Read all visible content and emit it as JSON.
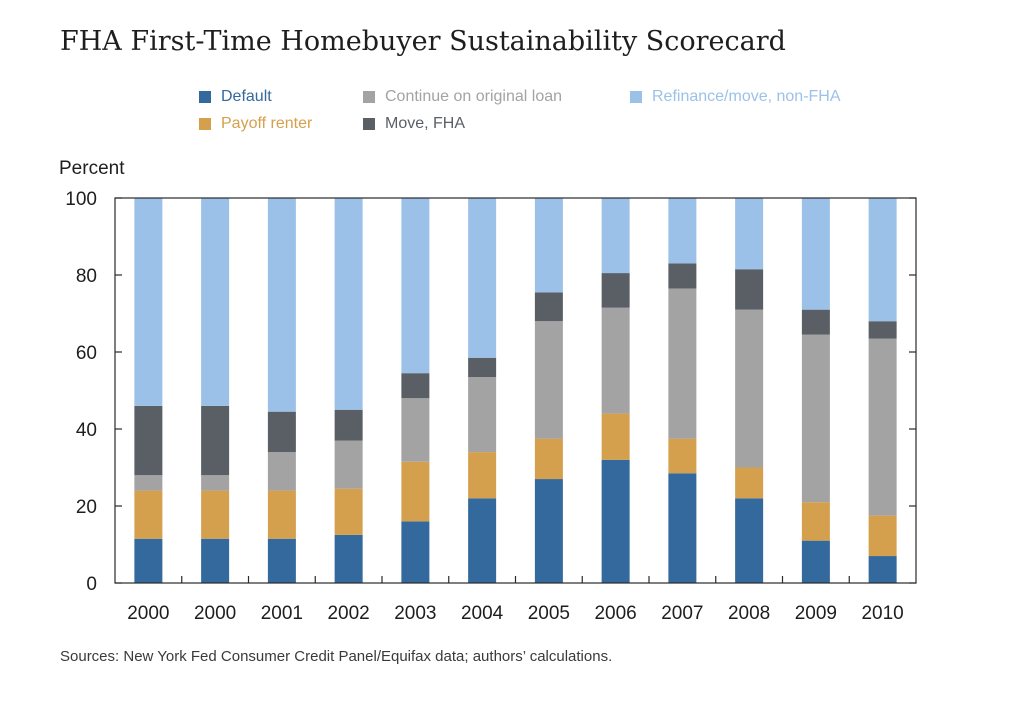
{
  "title": "FHA First-Time Homebuyer Sustainability Scorecard",
  "source": "Sources: New York Fed Consumer Credit Panel/Equifax data; authors’ calculations.",
  "legend": [
    {
      "label": "Default",
      "color": "#33699c"
    },
    {
      "label": "Payoff renter",
      "color": "#d4a04d"
    },
    {
      "label": "Continue on original loan",
      "color": "#a3a3a3"
    },
    {
      "label": "Move, FHA",
      "color": "#5a5f66"
    },
    {
      "label": "Refinance/move, non-FHA",
      "color": "#9cc1e8"
    }
  ],
  "chart_data": {
    "type": "bar",
    "stacked": true,
    "title": "FHA First-Time Homebuyer Sustainability Scorecard",
    "ylabel": "Percent",
    "xlabel": "",
    "ylim": [
      0,
      100
    ],
    "yticks": [
      0,
      20,
      40,
      60,
      80,
      100
    ],
    "grid": false,
    "legend_position": "top",
    "categories": [
      "2000",
      "2000",
      "2001",
      "2002",
      "2003",
      "2004",
      "2005",
      "2006",
      "2007",
      "2008",
      "2009",
      "2010"
    ],
    "series": [
      {
        "name": "Default",
        "color": "#33699c",
        "values": [
          11.5,
          11.5,
          11.5,
          12.5,
          16,
          22,
          27,
          32,
          28.5,
          22,
          11,
          7
        ]
      },
      {
        "name": "Payoff renter",
        "color": "#d4a04d",
        "values": [
          12.5,
          12.5,
          12.5,
          12,
          15.5,
          12,
          10.5,
          12,
          9,
          8,
          10,
          10.5
        ]
      },
      {
        "name": "Continue on original loan",
        "color": "#a3a3a3",
        "values": [
          4,
          4,
          10,
          12.5,
          16.5,
          19.5,
          30.5,
          27.5,
          39,
          41,
          43.5,
          46
        ]
      },
      {
        "name": "Move, FHA",
        "color": "#5a5f66",
        "values": [
          18,
          18,
          10.5,
          8,
          6.5,
          5,
          7.5,
          9,
          6.5,
          10.5,
          6.5,
          4.5
        ]
      },
      {
        "name": "Refinance/move, non-FHA",
        "color": "#9cc1e8",
        "values": [
          54,
          54,
          55.5,
          55,
          45.5,
          41.5,
          24.5,
          19.5,
          17,
          18.5,
          29,
          32
        ]
      }
    ]
  }
}
